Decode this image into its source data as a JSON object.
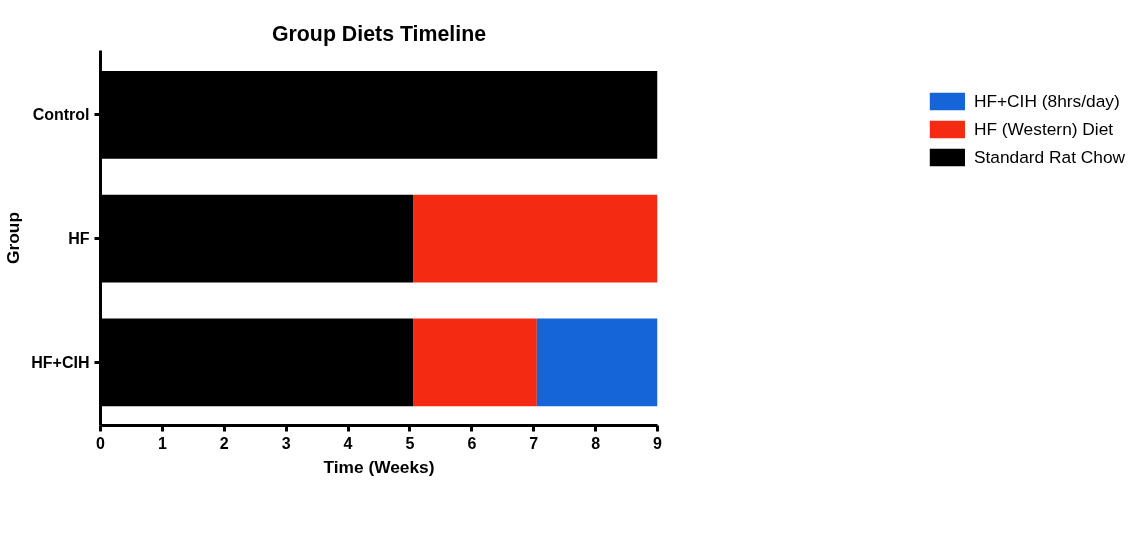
{
  "chart_data": {
    "type": "bar",
    "orientation": "horizontal",
    "stacked": true,
    "title": "Group Diets Timeline",
    "xlabel": "Time (Weeks)",
    "ylabel": "Group",
    "categories": [
      "Control",
      "HF",
      "HF+CIH"
    ],
    "series": [
      {
        "name": "Standard Rat Chow",
        "color": "#000000",
        "values": [
          9,
          5.05,
          5.05
        ]
      },
      {
        "name": "HF (Western) Diet",
        "color": "#f42a12",
        "values": [
          null,
          3.95,
          2.0
        ]
      },
      {
        "name": "HF+CIH (8hrs/day)",
        "color": "#1565d8",
        "values": [
          null,
          null,
          1.95
        ]
      }
    ],
    "xlim": [
      0,
      9
    ],
    "xticks": [
      0,
      1,
      2,
      3,
      4,
      5,
      6,
      7,
      8,
      9
    ],
    "grid": false,
    "legend": "right"
  }
}
